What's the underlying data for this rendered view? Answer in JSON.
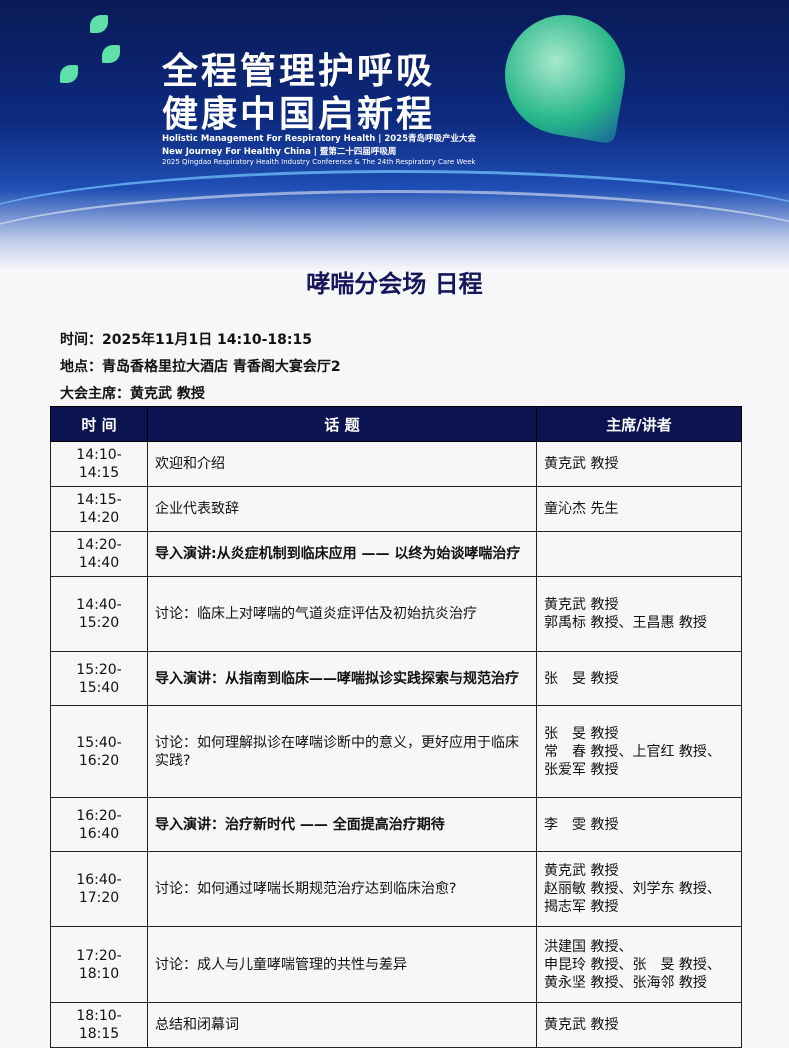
{
  "banner": {
    "title_line1": "全程管理护呼吸",
    "title_line2": "健康中国启新程",
    "en_line1": "Holistic Management For Respiratory Health | 2025青岛呼吸产业大会",
    "en_line2": "New Journey For Healthy China | 暨第二十四届呼吸周",
    "en_line3": "2025 Qingdao Respiratory Health Industry Conference & The 24th Respiratory Care Week"
  },
  "page_title": "哮喘分会场 日程",
  "info": {
    "time": "时间：2025年11月1日 14:10-18:15",
    "venue": "地点：青岛香格里拉大酒店 青香阁大宴会厅2",
    "chair": "大会主席：黄克武 教授"
  },
  "table": {
    "headers": [
      "时 间",
      "话 题",
      "主席/讲者"
    ],
    "rows": [
      {
        "time": "14:10-14:15",
        "topic": "欢迎和介绍",
        "speakers": [
          "黄克武 教授"
        ],
        "bold": false
      },
      {
        "time": "14:15-14:20",
        "topic": "企业代表致辞",
        "speakers": [
          "童沁杰 先生"
        ],
        "bold": false
      },
      {
        "time": "14:20-14:40",
        "topic": "导入演讲:从炎症机制到临床应用 —— 以终为始谈哮喘治疗",
        "speakers": [],
        "bold": true
      },
      {
        "time": "14:40-15:20",
        "topic": "讨论：临床上对哮喘的气道炎症评估及初始抗炎治疗",
        "speakers": [
          "黄克武 教授",
          "郭禹标 教授、王昌惠 教授"
        ],
        "bold": false
      },
      {
        "time": "15:20-15:40",
        "topic": "导入演讲：从指南到临床——哮喘拟诊实践探索与规范治疗",
        "speakers": [
          "张　旻 教授"
        ],
        "bold": true
      },
      {
        "time": "15:40-16:20",
        "topic": "讨论：如何理解拟诊在哮喘诊断中的意义，更好应用于临床实践?",
        "speakers": [
          "张　旻 教授",
          "常　春 教授、上官红 教授、",
          "张爱军 教授"
        ],
        "bold": false
      },
      {
        "time": "16:20-16:40",
        "topic": "导入演讲：治疗新时代 —— 全面提高治疗期待",
        "speakers": [
          "李　雯 教授"
        ],
        "bold": true
      },
      {
        "time": "16:40-17:20",
        "topic": "讨论：如何通过哮喘长期规范治疗达到临床治愈?",
        "speakers": [
          "黄克武 教授",
          "赵丽敏 教授、刘学东 教授、",
          "揭志军 教授"
        ],
        "bold": false
      },
      {
        "time": "17:20-18:10",
        "topic": "讨论：成人与儿童哮喘管理的共性与差异",
        "speakers": [
          "洪建国 教授、",
          "申昆玲 教授、张　旻 教授、",
          "黄永坚 教授、张海邻 教授"
        ],
        "bold": false
      },
      {
        "time": "18:10-18:15",
        "topic": "总结和闭幕词",
        "speakers": [
          "黄克武 教授"
        ],
        "bold": false
      }
    ]
  }
}
